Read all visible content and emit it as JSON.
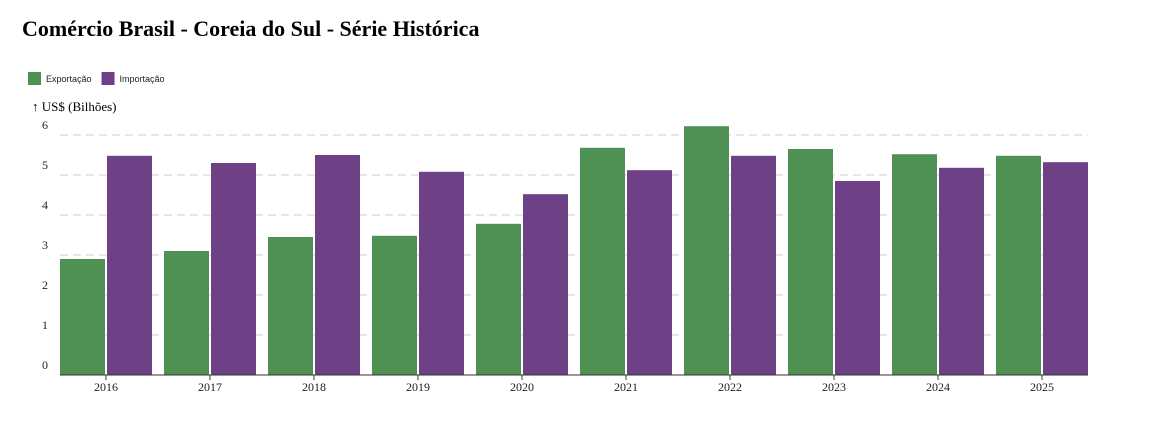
{
  "chart_data": {
    "type": "bar",
    "title": "Comércio Brasil - Coreia do Sul - Série Histórica",
    "y_label": "↑ US$ (Bilhões)",
    "categories": [
      "2016",
      "2017",
      "2018",
      "2019",
      "2020",
      "2021",
      "2022",
      "2023",
      "2024",
      "2025"
    ],
    "series": [
      {
        "name": "Exportação",
        "color": "#4e9153",
        "values": [
          2.9,
          3.1,
          3.45,
          3.48,
          3.78,
          5.68,
          6.22,
          5.65,
          5.52,
          5.48
        ]
      },
      {
        "name": "Importação",
        "color": "#6e4187",
        "values": [
          5.48,
          5.3,
          5.5,
          5.08,
          4.52,
          5.12,
          5.48,
          4.85,
          5.18,
          5.32
        ]
      }
    ],
    "ylim": [
      0,
      6.5
    ],
    "yticks": [
      0,
      1,
      2,
      3,
      4,
      5,
      6
    ],
    "grid": true,
    "legend": "top-left"
  }
}
